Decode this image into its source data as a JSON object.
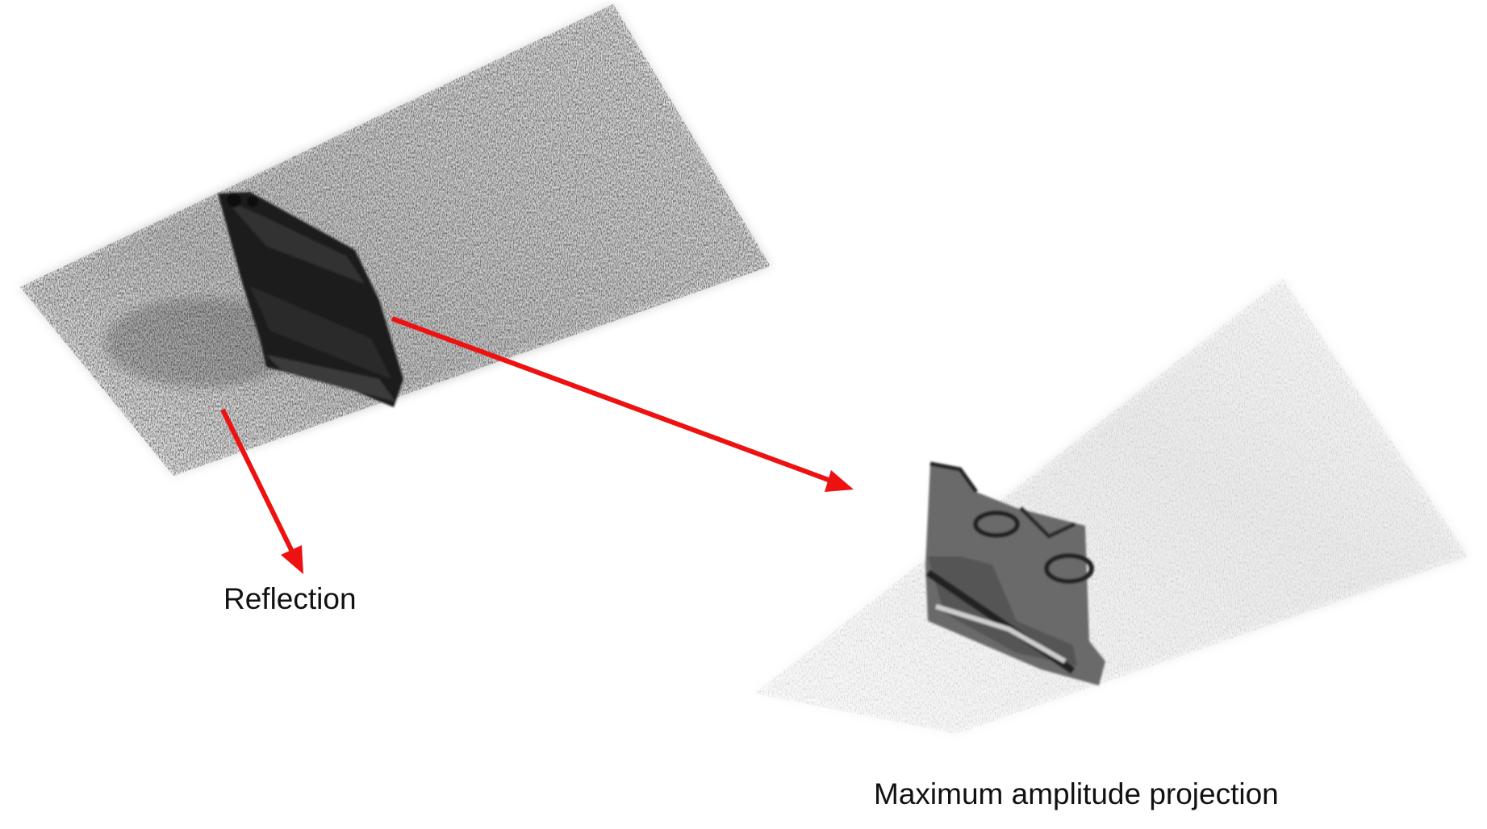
{
  "labels": {
    "reflection": "Reflection",
    "max_amplitude_projection": "Maximum amplitude projection"
  },
  "panels": [
    {
      "id": "reflection",
      "content": "3D ultrasonic volume rendering with dark inclusion, black speckle"
    },
    {
      "id": "max_amplitude_projection",
      "content": "maximum amplitude projection of same volume, grey speckle"
    }
  ],
  "colors": {
    "arrow": "#ee1111",
    "reflection_flaw": "#1f1f1f",
    "projection_flaw": "#6b6b6b",
    "reflection_noise": "#2a2a2a",
    "projection_noise": "#8a8a8a",
    "text": "#111111"
  }
}
